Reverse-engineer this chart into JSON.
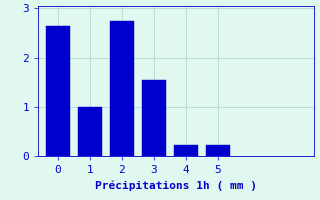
{
  "categories": [
    0,
    1,
    2,
    3,
    4,
    5
  ],
  "values": [
    2.65,
    1.0,
    2.75,
    1.55,
    0.22,
    0.22
  ],
  "bar_color": "#0000CC",
  "bar_edge_color": "#0000CC",
  "background_color": "#E0F8F0",
  "grid_color": "#B0D8D0",
  "xlabel": "Précipitations 1h ( mm )",
  "xlabel_color": "#0000CC",
  "tick_color": "#0000CC",
  "ylim": [
    0,
    3.05
  ],
  "xlim": [
    -0.6,
    8.0
  ],
  "yticks": [
    0,
    1,
    2,
    3
  ],
  "xticks": [
    0,
    1,
    2,
    3,
    4,
    5
  ],
  "bar_width": 0.75,
  "xlabel_fontsize": 8,
  "tick_fontsize": 8
}
